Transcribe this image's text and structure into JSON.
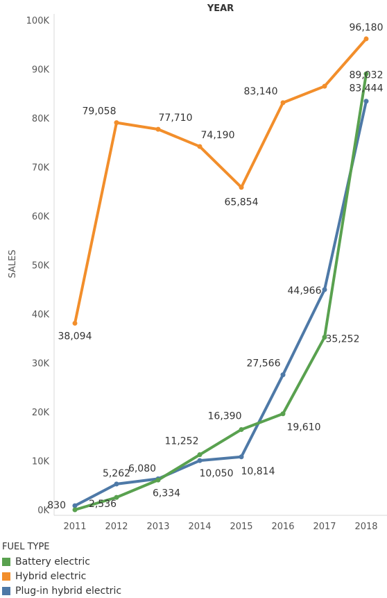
{
  "chart_data": {
    "type": "line",
    "title": "YEAR",
    "xlabel": "YEAR",
    "ylabel": "SALES",
    "x": [
      "2011",
      "2012",
      "2013",
      "2014",
      "2015",
      "2016",
      "2017",
      "2018"
    ],
    "ylim": [
      0,
      100000
    ],
    "yticks": [
      0,
      10000,
      20000,
      30000,
      40000,
      50000,
      60000,
      70000,
      80000,
      90000,
      100000
    ],
    "ytick_labels": [
      "0K",
      "10K",
      "20K",
      "30K",
      "40K",
      "50K",
      "60K",
      "70K",
      "80K",
      "90K",
      "100K"
    ],
    "grid": false,
    "legend_title": "FUEL TYPE",
    "legend_position": "bottom-left",
    "series": [
      {
        "name": "Battery electric",
        "color": "#59a14f",
        "values": [
          0,
          2536,
          6080,
          11252,
          16390,
          19610,
          35252,
          89032
        ]
      },
      {
        "name": "Hybrid electric",
        "color": "#f28e2b",
        "values": [
          38094,
          79058,
          77710,
          74190,
          65854,
          83140,
          86500,
          96180
        ]
      },
      {
        "name": "Plug-in hybrid electric",
        "color": "#4e79a7",
        "values": [
          830,
          5262,
          6334,
          10050,
          10814,
          27566,
          44966,
          83444
        ]
      }
    ],
    "data_labels": [
      {
        "text": "830",
        "x": "2011",
        "y": 830
      },
      {
        "text": "2,536",
        "x": "2012",
        "y": 2536
      },
      {
        "text": "5,262",
        "x": "2012",
        "y": 5262
      },
      {
        "text": "6,080",
        "x": "2013",
        "y": 6080
      },
      {
        "text": "6,334",
        "x": "2013",
        "y": 6334
      },
      {
        "text": "11,252",
        "x": "2014",
        "y": 11252
      },
      {
        "text": "10,050",
        "x": "2014",
        "y": 10050
      },
      {
        "text": "16,390",
        "x": "2015",
        "y": 16390
      },
      {
        "text": "10,814",
        "x": "2015",
        "y": 10814
      },
      {
        "text": "27,566",
        "x": "2016",
        "y": 27566
      },
      {
        "text": "19,610",
        "x": "2016",
        "y": 19610
      },
      {
        "text": "44,966",
        "x": "2017",
        "y": 44966
      },
      {
        "text": "35,252",
        "x": "2017",
        "y": 35252
      },
      {
        "text": "89,032",
        "x": "2018",
        "y": 89032
      },
      {
        "text": "83,444",
        "x": "2018",
        "y": 83444
      },
      {
        "text": "38,094",
        "x": "2011",
        "y": 38094
      },
      {
        "text": "79,058",
        "x": "2012",
        "y": 79058
      },
      {
        "text": "77,710",
        "x": "2013",
        "y": 77710
      },
      {
        "text": "74,190",
        "x": "2014",
        "y": 74190
      },
      {
        "text": "65,854",
        "x": "2015",
        "y": 65854
      },
      {
        "text": "83,140",
        "x": "2016",
        "y": 83140
      },
      {
        "text": "96,180",
        "x": "2018",
        "y": 96180
      }
    ]
  }
}
